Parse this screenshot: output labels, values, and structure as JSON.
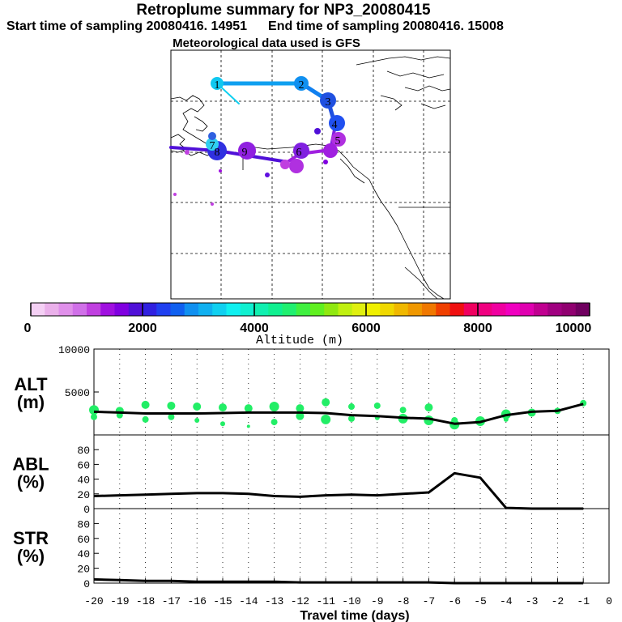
{
  "header": {
    "title": "Retroplume summary for NP3_20080415",
    "start_label": "Start time of sampling 20080416. 14951",
    "end_label": "End time of sampling 20080416. 15008",
    "met_label": "Meteorological data used is GFS"
  },
  "colorbar": {
    "tick_labels": [
      "0",
      "2000",
      "4000",
      "6000",
      "8000",
      "10000"
    ],
    "label": "Altitude (m)",
    "range": [
      0,
      10000
    ],
    "colors": [
      "#f4d0f4",
      "#eab0ea",
      "#e090ea",
      "#d070e8",
      "#c040e0",
      "#a010e0",
      "#8000e0",
      "#5010d8",
      "#3020e0",
      "#2040f0",
      "#1060f0",
      "#1090f0",
      "#10b0f0",
      "#10d0f0",
      "#10f0f0",
      "#10f0d0",
      "#10f0b0",
      "#10f090",
      "#20f070",
      "#40f040",
      "#60f020",
      "#90e810",
      "#c0f010",
      "#e0f010",
      "#f0f000",
      "#f0d800",
      "#f0b800",
      "#f09800",
      "#f07800",
      "#f04000",
      "#f01010",
      "#f00060",
      "#f00080",
      "#f000a0",
      "#f000c0",
      "#e000b0",
      "#c00090",
      "#a00080",
      "#900070",
      "#700060"
    ]
  },
  "map": {
    "numbered_points": [
      {
        "label": "1",
        "color": "#10c8f0"
      },
      {
        "label": "2",
        "color": "#1090f0"
      },
      {
        "label": "3",
        "color": "#2050e0"
      },
      {
        "label": "4",
        "color": "#2050f0"
      },
      {
        "label": "5",
        "color": "#b030e0"
      },
      {
        "label": "6",
        "color": "#a020e0"
      },
      {
        "label": "7",
        "color": "#30d0f0"
      },
      {
        "label": "8",
        "color": "#3030e0"
      },
      {
        "label": "9",
        "color": "#9020e0"
      }
    ]
  },
  "chart_data": [
    {
      "type": "line",
      "panel": "ALT",
      "ylabel_line1": "ALT",
      "ylabel_line2": "(m)",
      "ylim": [
        0,
        10000
      ],
      "yticks": [
        "10000",
        "5000"
      ],
      "x": [
        -20,
        -19,
        -18,
        -17,
        -16,
        -15,
        -14,
        -13,
        -12,
        -11,
        -10,
        -9,
        -8,
        -7,
        -6,
        -5,
        -4,
        -3,
        -2,
        -1
      ],
      "mean_altitude": [
        2700,
        2600,
        2500,
        2500,
        2500,
        2550,
        2600,
        2600,
        2600,
        2550,
        2300,
        2200,
        2000,
        1900,
        1300,
        1500,
        2300,
        2700,
        2800,
        3600
      ],
      "dots": [
        {
          "x": -20,
          "y": 2900,
          "size": 6
        },
        {
          "x": -20,
          "y": 2100,
          "size": 4
        },
        {
          "x": -19,
          "y": 2800,
          "size": 5
        },
        {
          "x": -19,
          "y": 2300,
          "size": 4
        },
        {
          "x": -18,
          "y": 3500,
          "size": 5
        },
        {
          "x": -18,
          "y": 1800,
          "size": 4
        },
        {
          "x": -17,
          "y": 3400,
          "size": 5
        },
        {
          "x": -17,
          "y": 2100,
          "size": 4
        },
        {
          "x": -16,
          "y": 3300,
          "size": 5
        },
        {
          "x": -16,
          "y": 1700,
          "size": 3
        },
        {
          "x": -15,
          "y": 3200,
          "size": 5
        },
        {
          "x": -15,
          "y": 1300,
          "size": 3
        },
        {
          "x": -14,
          "y": 3100,
          "size": 5
        },
        {
          "x": -14,
          "y": 1000,
          "size": 2
        },
        {
          "x": -13,
          "y": 3300,
          "size": 6
        },
        {
          "x": -13,
          "y": 1500,
          "size": 4
        },
        {
          "x": -12,
          "y": 3100,
          "size": 5
        },
        {
          "x": -12,
          "y": 2200,
          "size": 5
        },
        {
          "x": -11,
          "y": 3800,
          "size": 5
        },
        {
          "x": -11,
          "y": 1800,
          "size": 6
        },
        {
          "x": -10,
          "y": 3300,
          "size": 4
        },
        {
          "x": -10,
          "y": 1900,
          "size": 4
        },
        {
          "x": -9,
          "y": 3400,
          "size": 4
        },
        {
          "x": -9,
          "y": 2000,
          "size": 3
        },
        {
          "x": -8,
          "y": 2900,
          "size": 4
        },
        {
          "x": -8,
          "y": 1900,
          "size": 6
        },
        {
          "x": -7,
          "y": 3200,
          "size": 5
        },
        {
          "x": -7,
          "y": 1700,
          "size": 6
        },
        {
          "x": -6,
          "y": 1200,
          "size": 6
        },
        {
          "x": -6,
          "y": 1700,
          "size": 4
        },
        {
          "x": -5,
          "y": 1600,
          "size": 6
        },
        {
          "x": -4,
          "y": 2400,
          "size": 6
        },
        {
          "x": -4,
          "y": 1800,
          "size": 3
        },
        {
          "x": -3,
          "y": 2600,
          "size": 5
        },
        {
          "x": -2,
          "y": 2800,
          "size": 4
        },
        {
          "x": -1,
          "y": 3700,
          "size": 4
        }
      ]
    },
    {
      "type": "line",
      "panel": "ABL",
      "ylabel_line1": "ABL",
      "ylabel_line2": "(%)",
      "ylim": [
        0,
        100
      ],
      "yticks": [
        "80",
        "60",
        "40",
        "20",
        "0"
      ],
      "x": [
        -20,
        -19,
        -18,
        -17,
        -16,
        -15,
        -14,
        -13,
        -12,
        -11,
        -10,
        -9,
        -8,
        -7,
        -6,
        -5,
        -4,
        -3,
        -2,
        -1
      ],
      "values": [
        17,
        18,
        19,
        20,
        21,
        21,
        20,
        17,
        16,
        18,
        19,
        18,
        20,
        22,
        48,
        42,
        1,
        0,
        0,
        0
      ]
    },
    {
      "type": "line",
      "panel": "STR",
      "ylabel_line1": "STR",
      "ylabel_line2": "(%)",
      "ylim": [
        0,
        100
      ],
      "yticks": [
        "80",
        "60",
        "40",
        "20",
        "0"
      ],
      "x": [
        -20,
        -19,
        -18,
        -17,
        -16,
        -15,
        -14,
        -13,
        -12,
        -11,
        -10,
        -9,
        -8,
        -7,
        -6,
        -5,
        -4,
        -3,
        -2,
        -1
      ],
      "values": [
        5,
        4,
        3,
        3,
        2,
        2,
        2,
        2,
        1,
        1,
        1,
        1,
        1,
        1,
        0,
        0,
        0,
        0,
        0,
        0
      ]
    }
  ],
  "xaxis": {
    "tick_labels": [
      "-20",
      "-19",
      "-18",
      "-17",
      "-16",
      "-15",
      "-14",
      "-13",
      "-12",
      "-11",
      "-10",
      "-9",
      "-8",
      "-7",
      "-6",
      "-5",
      "-4",
      "-3",
      "-2",
      "-1",
      "0"
    ],
    "label": "Travel time (days)"
  }
}
